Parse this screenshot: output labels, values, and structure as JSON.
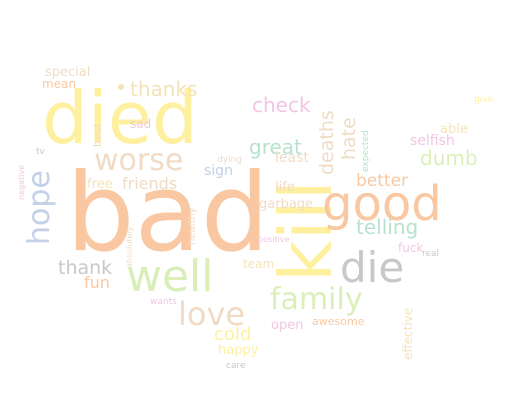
{
  "words": [
    {
      "text": "bad",
      "color": "#f9c8a2"
    },
    {
      "text": "died",
      "color": "#fff0a0"
    },
    {
      "text": "kill",
      "color": "#fff0a0"
    },
    {
      "text": "good",
      "color": "#f9c8a2"
    },
    {
      "text": "well",
      "color": "#d9eeb8"
    },
    {
      "text": "die",
      "color": "#c8c8c8"
    },
    {
      "text": "family",
      "color": "#dcefb9"
    },
    {
      "text": "worse",
      "color": "#f0dcc4"
    },
    {
      "text": "love",
      "color": "#f0dcc4"
    },
    {
      "text": "hope",
      "color": "#c3d0e8"
    },
    {
      "text": "thanks",
      "color": "#f5e3b8"
    },
    {
      "text": "check",
      "color": "#f2c6e2"
    },
    {
      "text": "great",
      "color": "#b7e2ce"
    },
    {
      "text": "dumb",
      "color": "#dcefb9"
    },
    {
      "text": "telling",
      "color": "#b7e2ce"
    },
    {
      "text": "deaths",
      "color": "#f0dcc4"
    },
    {
      "text": "hate",
      "color": "#f0dcc4"
    },
    {
      "text": "better",
      "color": "#f9c8a2"
    },
    {
      "text": "thank",
      "color": "#c8c8c8"
    },
    {
      "text": "friends",
      "color": "#f0dcc4"
    },
    {
      "text": "cold",
      "color": "#fff0a0"
    },
    {
      "text": "selfish",
      "color": "#f2c6e2"
    },
    {
      "text": "able",
      "color": "#f5e3b8"
    },
    {
      "text": "fun",
      "color": "#f9c8a2"
    },
    {
      "text": "least",
      "color": "#f0dcc4"
    },
    {
      "text": "sign",
      "color": "#c3d0e8"
    },
    {
      "text": "life",
      "color": "#f0dcc4"
    },
    {
      "text": "garbage",
      "color": "#f0dcc4"
    },
    {
      "text": "free",
      "color": "#f5e3b8"
    },
    {
      "text": "open",
      "color": "#f2c6e2"
    },
    {
      "text": "happy",
      "color": "#fff0a0"
    },
    {
      "text": "special",
      "color": "#f0dcc4"
    },
    {
      "text": "mean",
      "color": "#f9c8a2"
    },
    {
      "text": "sad",
      "color": "#f2c6e2"
    },
    {
      "text": "best",
      "color": "#f0dcc4"
    },
    {
      "text": "team",
      "color": "#f5e3b8"
    },
    {
      "text": "fuck",
      "color": "#f2c6e2"
    },
    {
      "text": "effective",
      "color": "#f5e3b8"
    },
    {
      "text": "awesome",
      "color": "#f9c8a2"
    },
    {
      "text": "healthy",
      "color": "#f0dcc4"
    },
    {
      "text": "dying",
      "color": "#f0dcc4"
    },
    {
      "text": "expected",
      "color": "#b7e2ce"
    },
    {
      "text": "positive",
      "color": "#f2c6e2"
    },
    {
      "text": "absolutely",
      "color": "#f0dcc4"
    },
    {
      "text": "negative",
      "color": "#f2c6e2"
    },
    {
      "text": "wants",
      "color": "#f2c6e2"
    },
    {
      "text": "care",
      "color": "#c8c8c8"
    },
    {
      "text": "tv",
      "color": "#c8c8c8"
    },
    {
      "text": "real",
      "color": "#c8c8c8"
    },
    {
      "text": "give",
      "color": "#fff0a0"
    }
  ]
}
